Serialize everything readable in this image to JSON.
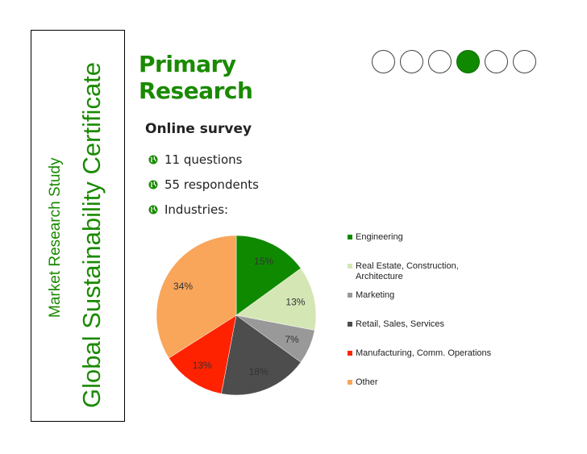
{
  "sidebar": {
    "study_label": "Market  Research  Study",
    "certificate_label": "Global Sustainability Certificate"
  },
  "slide": {
    "title_line1": "Primary",
    "title_line2": "Research",
    "subheading": "Online survey",
    "bullets": [
      "11 questions",
      "55 respondents",
      "Industries:"
    ],
    "bullet_icon": "globe-icon"
  },
  "progress": {
    "total_steps": 6,
    "current_step": 4,
    "active_color": "#0f8a00"
  },
  "chart_data": {
    "type": "pie",
    "title": "",
    "categories": [
      "Engineering",
      "Real Estate, Construction, Architecture",
      "Marketing",
      "Retail, Sales, Services",
      "Manufacturing, Comm. Operations",
      "Other"
    ],
    "values": [
      15,
      13,
      7,
      18,
      13,
      34
    ],
    "value_labels": [
      "15%",
      "13%",
      "7%",
      "18%",
      "13%",
      "34%"
    ],
    "colors": [
      "#0f8a00",
      "#d5e6b5",
      "#999999",
      "#4d4d4d",
      "#ff2200",
      "#f9a55a"
    ],
    "legend_position": "right"
  }
}
